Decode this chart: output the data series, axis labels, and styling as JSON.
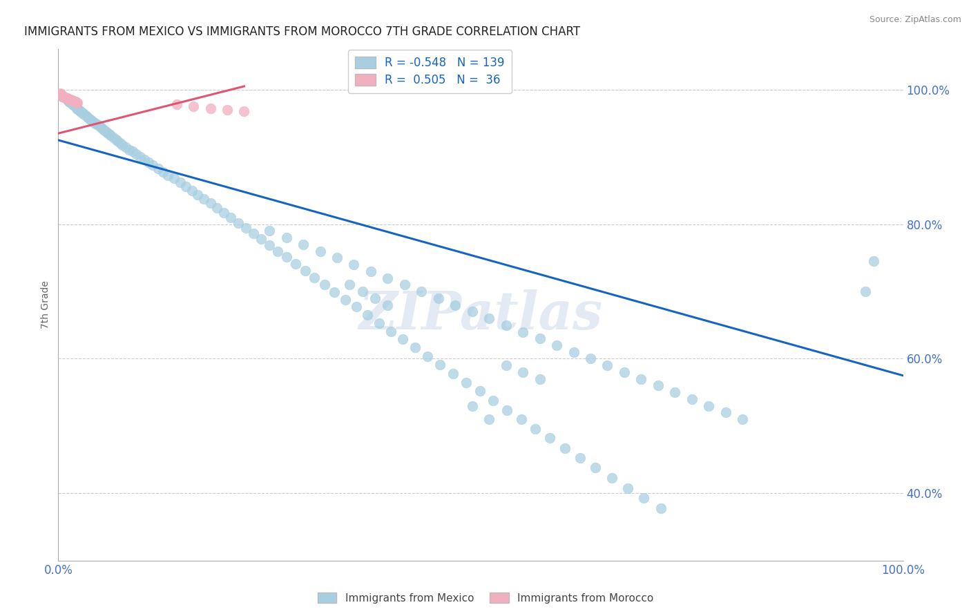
{
  "title": "IMMIGRANTS FROM MEXICO VS IMMIGRANTS FROM MOROCCO 7TH GRADE CORRELATION CHART",
  "source": "Source: ZipAtlas.com",
  "ylabel": "7th Grade",
  "blue_R": -0.548,
  "blue_N": 139,
  "pink_R": 0.505,
  "pink_N": 36,
  "blue_color": "#a8cfe0",
  "pink_color": "#f2afc0",
  "blue_line_color": "#1565c0",
  "pink_line_color": "#e05570",
  "legend_label_blue": "Immigrants from Mexico",
  "legend_label_pink": "Immigrants from Morocco",
  "watermark": "ZIPatlas",
  "xlim": [
    0.0,
    1.0
  ],
  "ylim": [
    0.3,
    1.06
  ],
  "xticks": [
    0.0,
    1.0
  ],
  "yticks": [
    0.4,
    0.6,
    0.8,
    1.0
  ],
  "tick_color": "#4472c4",
  "grid_color": "#cccccc",
  "blue_line_x": [
    0.0,
    1.0
  ],
  "blue_line_y": [
    0.925,
    0.575
  ],
  "pink_line_x": [
    0.0,
    0.22
  ],
  "pink_line_y": [
    0.935,
    1.005
  ],
  "blue_x": [
    0.005,
    0.008,
    0.01,
    0.012,
    0.013,
    0.014,
    0.015,
    0.016,
    0.017,
    0.018,
    0.019,
    0.02,
    0.021,
    0.022,
    0.023,
    0.024,
    0.025,
    0.026,
    0.027,
    0.028,
    0.029,
    0.03,
    0.032,
    0.034,
    0.036,
    0.038,
    0.04,
    0.042,
    0.044,
    0.046,
    0.048,
    0.05,
    0.052,
    0.054,
    0.056,
    0.058,
    0.06,
    0.062,
    0.065,
    0.068,
    0.07,
    0.073,
    0.076,
    0.08,
    0.084,
    0.088,
    0.092,
    0.097,
    0.102,
    0.107,
    0.112,
    0.118,
    0.124,
    0.13,
    0.137,
    0.144,
    0.151,
    0.158,
    0.165,
    0.172,
    0.18,
    0.188,
    0.196,
    0.204,
    0.213,
    0.222,
    0.231,
    0.24,
    0.25,
    0.26,
    0.27,
    0.281,
    0.292,
    0.303,
    0.315,
    0.327,
    0.34,
    0.353,
    0.366,
    0.38,
    0.394,
    0.408,
    0.422,
    0.437,
    0.452,
    0.467,
    0.483,
    0.499,
    0.515,
    0.531,
    0.548,
    0.565,
    0.582,
    0.6,
    0.618,
    0.636,
    0.655,
    0.674,
    0.693,
    0.713,
    0.25,
    0.27,
    0.29,
    0.31,
    0.33,
    0.35,
    0.37,
    0.39,
    0.41,
    0.43,
    0.45,
    0.47,
    0.49,
    0.51,
    0.53,
    0.55,
    0.57,
    0.59,
    0.61,
    0.63,
    0.65,
    0.67,
    0.69,
    0.71,
    0.73,
    0.75,
    0.77,
    0.79,
    0.81,
    0.955,
    0.965,
    0.49,
    0.51,
    0.345,
    0.36,
    0.375,
    0.39,
    0.53,
    0.55,
    0.57
  ],
  "blue_y": [
    0.99,
    0.988,
    0.985,
    0.983,
    0.982,
    0.981,
    0.98,
    0.979,
    0.978,
    0.977,
    0.976,
    0.975,
    0.974,
    0.972,
    0.971,
    0.97,
    0.969,
    0.968,
    0.967,
    0.966,
    0.965,
    0.964,
    0.962,
    0.96,
    0.958,
    0.956,
    0.954,
    0.952,
    0.95,
    0.948,
    0.946,
    0.944,
    0.942,
    0.94,
    0.938,
    0.936,
    0.934,
    0.932,
    0.929,
    0.926,
    0.924,
    0.921,
    0.918,
    0.915,
    0.911,
    0.908,
    0.904,
    0.9,
    0.896,
    0.892,
    0.888,
    0.883,
    0.878,
    0.873,
    0.868,
    0.862,
    0.856,
    0.85,
    0.844,
    0.838,
    0.831,
    0.824,
    0.817,
    0.81,
    0.802,
    0.794,
    0.786,
    0.778,
    0.769,
    0.76,
    0.751,
    0.741,
    0.731,
    0.721,
    0.71,
    0.699,
    0.688,
    0.677,
    0.665,
    0.653,
    0.641,
    0.629,
    0.617,
    0.604,
    0.591,
    0.578,
    0.565,
    0.552,
    0.538,
    0.524,
    0.51,
    0.496,
    0.482,
    0.467,
    0.453,
    0.438,
    0.423,
    0.408,
    0.393,
    0.378,
    0.79,
    0.78,
    0.77,
    0.76,
    0.75,
    0.74,
    0.73,
    0.72,
    0.71,
    0.7,
    0.69,
    0.68,
    0.67,
    0.66,
    0.65,
    0.64,
    0.63,
    0.62,
    0.61,
    0.6,
    0.59,
    0.58,
    0.57,
    0.56,
    0.55,
    0.54,
    0.53,
    0.52,
    0.51,
    0.7,
    0.745,
    0.53,
    0.51,
    0.71,
    0.7,
    0.69,
    0.68,
    0.59,
    0.58,
    0.57
  ],
  "pink_x": [
    0.002,
    0.004,
    0.006,
    0.008,
    0.01,
    0.012,
    0.014,
    0.016,
    0.018,
    0.02,
    0.003,
    0.005,
    0.007,
    0.009,
    0.011,
    0.013,
    0.015,
    0.017,
    0.019,
    0.021,
    0.004,
    0.006,
    0.008,
    0.01,
    0.012,
    0.014,
    0.016,
    0.018,
    0.02,
    0.022,
    0.14,
    0.16,
    0.18,
    0.2,
    0.22,
    0.023
  ],
  "pink_y": [
    0.995,
    0.992,
    0.99,
    0.988,
    0.987,
    0.986,
    0.985,
    0.984,
    0.983,
    0.982,
    0.994,
    0.991,
    0.989,
    0.987,
    0.986,
    0.985,
    0.984,
    0.983,
    0.982,
    0.981,
    0.993,
    0.99,
    0.988,
    0.987,
    0.986,
    0.985,
    0.984,
    0.983,
    0.982,
    0.981,
    0.978,
    0.975,
    0.972,
    0.97,
    0.968,
    0.98
  ]
}
